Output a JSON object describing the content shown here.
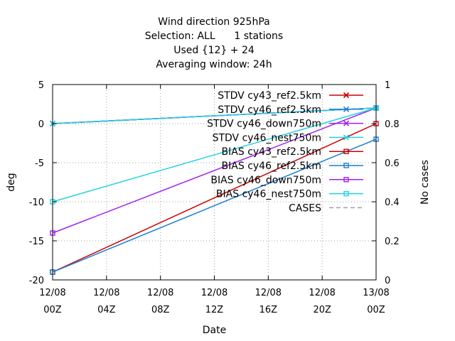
{
  "chart_data": {
    "type": "line",
    "title_lines": [
      "Wind direction 925hPa",
      "Selection: ALL      1 stations",
      "Used {12} + 24",
      "Averaging window: 24h"
    ],
    "xlabel": "Date",
    "ylabel": "deg",
    "y2label": "No cases",
    "x_ticks": [
      {
        "line1": "12/08",
        "line2": "00Z",
        "hours": 0
      },
      {
        "line1": "12/08",
        "line2": "04Z",
        "hours": 4
      },
      {
        "line1": "12/08",
        "line2": "08Z",
        "hours": 8
      },
      {
        "line1": "12/08",
        "line2": "12Z",
        "hours": 12
      },
      {
        "line1": "12/08",
        "line2": "16Z",
        "hours": 16
      },
      {
        "line1": "12/08",
        "line2": "20Z",
        "hours": 20
      },
      {
        "line1": "13/08",
        "line2": "00Z",
        "hours": 24
      }
    ],
    "xlim_hours": [
      0,
      24
    ],
    "ylim": [
      -20,
      5
    ],
    "y_ticks": [
      "5",
      "0",
      "-5",
      "-10",
      "-15",
      "-20"
    ],
    "y2lim": [
      0,
      1
    ],
    "y2_ticks": [
      "1",
      "0.8",
      "0.6",
      "0.4",
      "0.2",
      "0"
    ],
    "grid": true,
    "legend_position": "top-right",
    "series": [
      {
        "name": "STDV cy43_ref2.5km",
        "color": "#cc0000",
        "marker": "x",
        "x_hours": [
          0,
          24
        ],
        "y": [
          0,
          2
        ]
      },
      {
        "name": "STDV cy46_ref2.5km",
        "color": "#1a7fd6",
        "marker": "x",
        "x_hours": [
          0,
          24
        ],
        "y": [
          0,
          2
        ]
      },
      {
        "name": "STDV cy46_down750m",
        "color": "#a020f0",
        "marker": "x",
        "x_hours": [
          0,
          24
        ],
        "y": [
          0,
          2
        ]
      },
      {
        "name": "STDV cy46_nest750m",
        "color": "#22d3e0",
        "marker": "x",
        "x_hours": [
          0,
          24
        ],
        "y": [
          0,
          2
        ]
      },
      {
        "name": "BIAS cy43_ref2.5km",
        "color": "#cc0000",
        "marker": "square",
        "x_hours": [
          0,
          24
        ],
        "y": [
          -19,
          0
        ]
      },
      {
        "name": "BIAS cy46_ref2.5km",
        "color": "#1a7fd6",
        "marker": "square",
        "x_hours": [
          0,
          24
        ],
        "y": [
          -19,
          -2
        ]
      },
      {
        "name": "BIAS cy46_down750m",
        "color": "#a020f0",
        "marker": "square",
        "x_hours": [
          0,
          24
        ],
        "y": [
          -14,
          2
        ]
      },
      {
        "name": "BIAS cy46_nest750m",
        "color": "#22d3e0",
        "marker": "square",
        "x_hours": [
          0,
          24
        ],
        "y": [
          -10,
          2
        ]
      },
      {
        "name": "CASES",
        "color": "#a0a0a0",
        "marker": "none",
        "dashed": true,
        "x_hours": [],
        "y": []
      }
    ]
  }
}
